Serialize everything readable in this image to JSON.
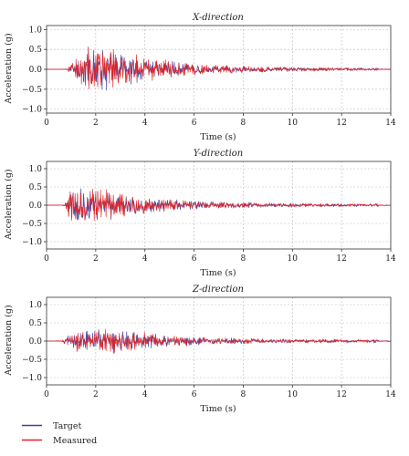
{
  "figure": {
    "legend_placement": "bottom-left",
    "colors": {
      "target": "#3b3fa8",
      "measured": "#e8201c",
      "grid": "#b9b9b9",
      "axis": "#333333"
    }
  },
  "legend": [
    {
      "label": "Target",
      "color": "#3b3fa8"
    },
    {
      "label": "Measured",
      "color": "#e8201c"
    }
  ],
  "chart_data": [
    {
      "type": "line",
      "title": "X-direction",
      "xlabel": "Time (s)",
      "ylabel": "Acceleration (g)",
      "xlim": [
        0,
        14
      ],
      "ylim": [
        -1.1,
        1.1
      ],
      "xticks": [
        0,
        2,
        4,
        6,
        8,
        10,
        12,
        14
      ],
      "yticks": [
        -1.0,
        -0.5,
        0.0,
        0.5,
        1.0
      ],
      "ytick_labels": [
        "−1.0",
        "−0.5",
        "0.0",
        "0.5",
        "1.0"
      ],
      "grid": true,
      "signal": {
        "duration_s": 14,
        "dt_s": 0.02,
        "rise_s": [
          0.8,
          1.7
        ],
        "peak_s": [
          1.7,
          2.5
        ],
        "decay_end_s": 13.5,
        "amp_peak_g": 0.9,
        "amp_tail_g": 0.05,
        "max_abs_g": 1.0
      },
      "series": [
        {
          "name": "Target",
          "color": "#3b3fa8",
          "seed": 11
        },
        {
          "name": "Measured",
          "color": "#e8201c",
          "seed": 12
        }
      ]
    },
    {
      "type": "line",
      "title": "Y-direction",
      "xlabel": "Time (s)",
      "ylabel": "Acceleration (g)",
      "xlim": [
        0,
        14
      ],
      "ylim": [
        -1.2,
        1.2
      ],
      "xticks": [
        0,
        2,
        4,
        6,
        8,
        10,
        12,
        14
      ],
      "yticks": [
        -1.0,
        -0.5,
        0.0,
        0.5,
        1.0
      ],
      "ytick_labels": [
        "−1.0",
        "−0.5",
        "0.0",
        "0.5",
        "1.0"
      ],
      "grid": true,
      "signal": {
        "duration_s": 14,
        "dt_s": 0.02,
        "rise_s": [
          0.7,
          1.0
        ],
        "peak_s": [
          1.0,
          2.0
        ],
        "decay_end_s": 13.5,
        "amp_peak_g": 0.75,
        "amp_tail_g": 0.06,
        "max_abs_g": 0.85
      },
      "series": [
        {
          "name": "Target",
          "color": "#3b3fa8",
          "seed": 21
        },
        {
          "name": "Measured",
          "color": "#e8201c",
          "seed": 22
        }
      ]
    },
    {
      "type": "line",
      "title": "Z-direction",
      "xlabel": "Time (s)",
      "ylabel": "Acceleration (g)",
      "xlim": [
        0,
        14
      ],
      "ylim": [
        -1.2,
        1.2
      ],
      "xticks": [
        0,
        2,
        4,
        6,
        8,
        10,
        12,
        14
      ],
      "yticks": [
        -1.0,
        -0.5,
        0.0,
        0.5,
        1.0
      ],
      "ytick_labels": [
        "−1.0",
        "−0.5",
        "0.0",
        "0.5",
        "1.0"
      ],
      "grid": true,
      "signal": {
        "duration_s": 14,
        "dt_s": 0.02,
        "rise_s": [
          0.6,
          1.2
        ],
        "peak_s": [
          1.2,
          3.2
        ],
        "decay_end_s": 13.5,
        "amp_peak_g": 0.5,
        "amp_tail_g": 0.07,
        "max_abs_g": 0.65
      },
      "series": [
        {
          "name": "Target",
          "color": "#3b3fa8",
          "seed": 31
        },
        {
          "name": "Measured",
          "color": "#e8201c",
          "seed": 32
        }
      ]
    }
  ]
}
